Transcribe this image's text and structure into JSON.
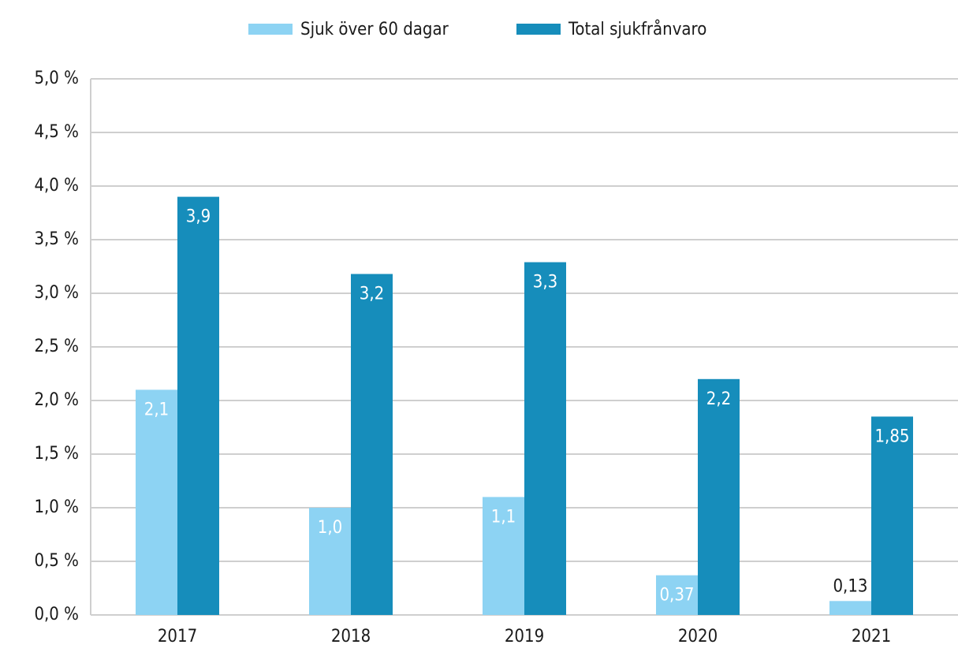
{
  "chart_data": {
    "type": "bar",
    "categories": [
      "2017",
      "2018",
      "2019",
      "2020",
      "2021"
    ],
    "series": [
      {
        "name": "Sjuk över 60 dagar",
        "color": "#8dd3f3",
        "values": [
          2.1,
          1.0,
          1.1,
          0.37,
          0.13
        ],
        "value_labels": [
          "2,1",
          "1,0",
          "1,1",
          "0,37",
          "0,13"
        ]
      },
      {
        "name": "Total sjukfrånvaro",
        "color": "#168dbb",
        "values": [
          3.9,
          3.18,
          3.29,
          2.2,
          1.85
        ],
        "value_labels": [
          "3,9",
          "3,2",
          "3,3",
          "2,2",
          "1,85"
        ]
      }
    ],
    "ylim": [
      0,
      5
    ],
    "yticks": [
      {
        "value": 0,
        "label": "0,0 %"
      },
      {
        "value": 0.5,
        "label": "0,5 %"
      },
      {
        "value": 1,
        "label": "1,0 %"
      },
      {
        "value": 1.5,
        "label": "1,5 %"
      },
      {
        "value": 2,
        "label": "2,0 %"
      },
      {
        "value": 2.5,
        "label": "2,5 %"
      },
      {
        "value": 3,
        "label": "3,0 %"
      },
      {
        "value": 3.5,
        "label": "3,5 %"
      },
      {
        "value": 4,
        "label": "4,0 %"
      },
      {
        "value": 4.5,
        "label": "4,5 %"
      },
      {
        "value": 5,
        "label": "5,0 %"
      }
    ],
    "grid": true,
    "legend": "top"
  }
}
